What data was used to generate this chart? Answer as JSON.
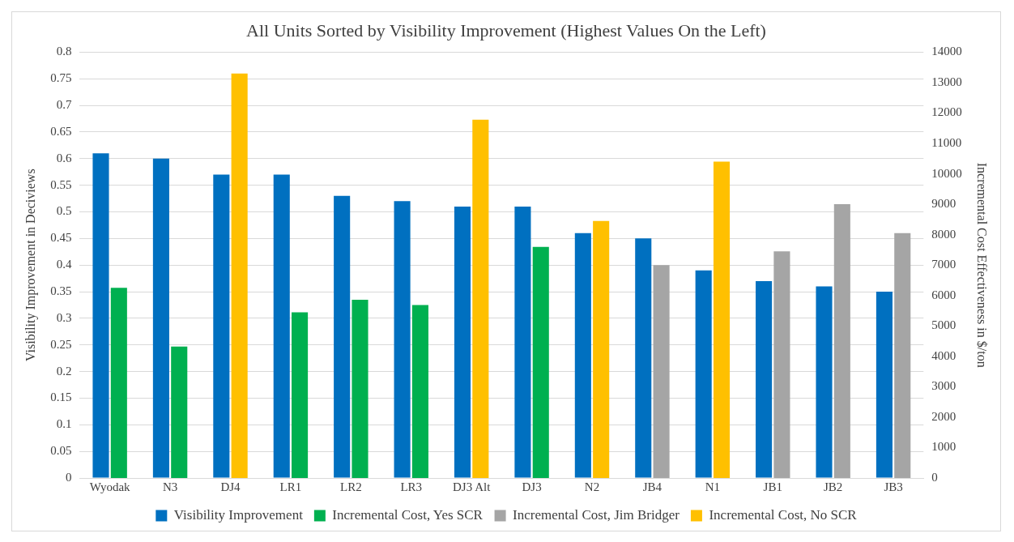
{
  "chart_data": {
    "type": "bar",
    "title": "All Units Sorted by Visibility Improvement (Highest Values On the Left)",
    "categories": [
      "Wyodak",
      "N3",
      "DJ4",
      "LR1",
      "LR2",
      "LR3",
      "DJ3 Alt",
      "DJ3",
      "N2",
      "JB4",
      "N1",
      "JB1",
      "JB2",
      "JB3"
    ],
    "ylabel": "Visibility Improvement in Deciviews",
    "y2label": "Incremental Cost Effectiveness in $/ton",
    "ylim": [
      0,
      0.8
    ],
    "yticks": [
      0,
      0.05,
      0.1,
      0.15,
      0.2,
      0.25,
      0.3,
      0.35,
      0.4,
      0.45,
      0.5,
      0.55,
      0.6,
      0.65,
      0.7,
      0.75,
      0.8
    ],
    "y2lim": [
      0,
      14000
    ],
    "y2ticks": [
      0,
      1000,
      2000,
      3000,
      4000,
      5000,
      6000,
      7000,
      8000,
      9000,
      10000,
      11000,
      12000,
      13000,
      14000
    ],
    "grid": "y",
    "legend": "bottom",
    "series": [
      {
        "name": "Visibility Improvement",
        "color": "#0070c0",
        "values": [
          0.61,
          0.6,
          0.57,
          0.57,
          0.53,
          0.52,
          0.51,
          0.51,
          0.46,
          0.45,
          0.39,
          0.37,
          0.36,
          0.35
        ]
      },
      {
        "name": "Incremental Cost, Yes SCR",
        "color": "#00b050",
        "axis": "y2",
        "values": [
          6250,
          4320,
          null,
          5450,
          5860,
          5690,
          null,
          7600,
          null,
          null,
          null,
          null,
          null,
          null
        ]
      },
      {
        "name": "Incremental Cost, Jim Bridger",
        "color": "#a5a5a5",
        "axis": "y2",
        "values": [
          null,
          null,
          null,
          null,
          null,
          null,
          null,
          null,
          null,
          7000,
          null,
          7450,
          9000,
          8050
        ]
      },
      {
        "name": "Incremental Cost, No SCR",
        "color": "#ffc000",
        "axis": "y2",
        "values": [
          null,
          null,
          13300,
          null,
          null,
          null,
          11780,
          null,
          8450,
          null,
          10400,
          null,
          null,
          null
        ]
      }
    ]
  }
}
